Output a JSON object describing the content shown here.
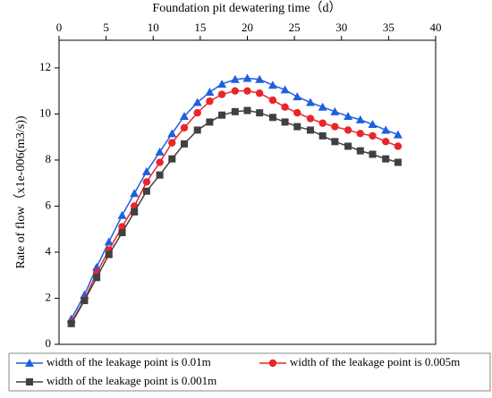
{
  "chart_data": {
    "type": "line",
    "x_label": "Foundation pit dewatering time（d）",
    "y_label": "Rate of flow（x1e-006(m3/s))",
    "x": [
      1.3,
      2.7,
      4,
      5.3,
      6.7,
      8,
      9.3,
      10.7,
      12,
      13.3,
      14.7,
      16,
      17.3,
      18.7,
      20,
      21.3,
      22.7,
      24,
      25.3,
      26.7,
      28,
      29.3,
      30.7,
      32,
      33.3,
      34.7,
      36
    ],
    "series": [
      {
        "name": "width of the leakage point is 0.01m",
        "color": "#1f5fe0",
        "marker": "triangle",
        "values": [
          1.1,
          2.15,
          3.35,
          4.45,
          5.6,
          6.55,
          7.5,
          8.35,
          9.15,
          9.9,
          10.5,
          10.95,
          11.3,
          11.5,
          11.55,
          11.5,
          11.25,
          11.05,
          10.75,
          10.5,
          10.3,
          10.1,
          9.9,
          9.75,
          9.55,
          9.3,
          9.1
        ]
      },
      {
        "name": "width of the leakage point is 0.005m",
        "color": "#e8262a",
        "marker": "circle",
        "values": [
          0.95,
          1.95,
          3.1,
          4.1,
          5.1,
          6.0,
          7.05,
          7.9,
          8.75,
          9.4,
          10.05,
          10.55,
          10.85,
          11.0,
          11.0,
          10.9,
          10.6,
          10.3,
          10.05,
          9.8,
          9.6,
          9.45,
          9.3,
          9.15,
          9.05,
          8.8,
          8.6
        ]
      },
      {
        "name": "width of the leakage point is 0.001m",
        "color": "#404040",
        "marker": "square",
        "values": [
          0.9,
          1.9,
          2.9,
          3.9,
          4.85,
          5.75,
          6.65,
          7.35,
          8.05,
          8.7,
          9.3,
          9.65,
          9.95,
          10.1,
          10.15,
          10.05,
          9.85,
          9.65,
          9.45,
          9.3,
          9.05,
          8.8,
          8.6,
          8.4,
          8.25,
          8.05,
          7.9
        ]
      }
    ],
    "xlim": [
      0,
      40
    ],
    "xticks": [
      0,
      5,
      10,
      15,
      20,
      25,
      30,
      35,
      40
    ],
    "ylim": [
      0,
      13.2
    ],
    "yticks": [
      0,
      2,
      4,
      6,
      8,
      10,
      12
    ]
  }
}
